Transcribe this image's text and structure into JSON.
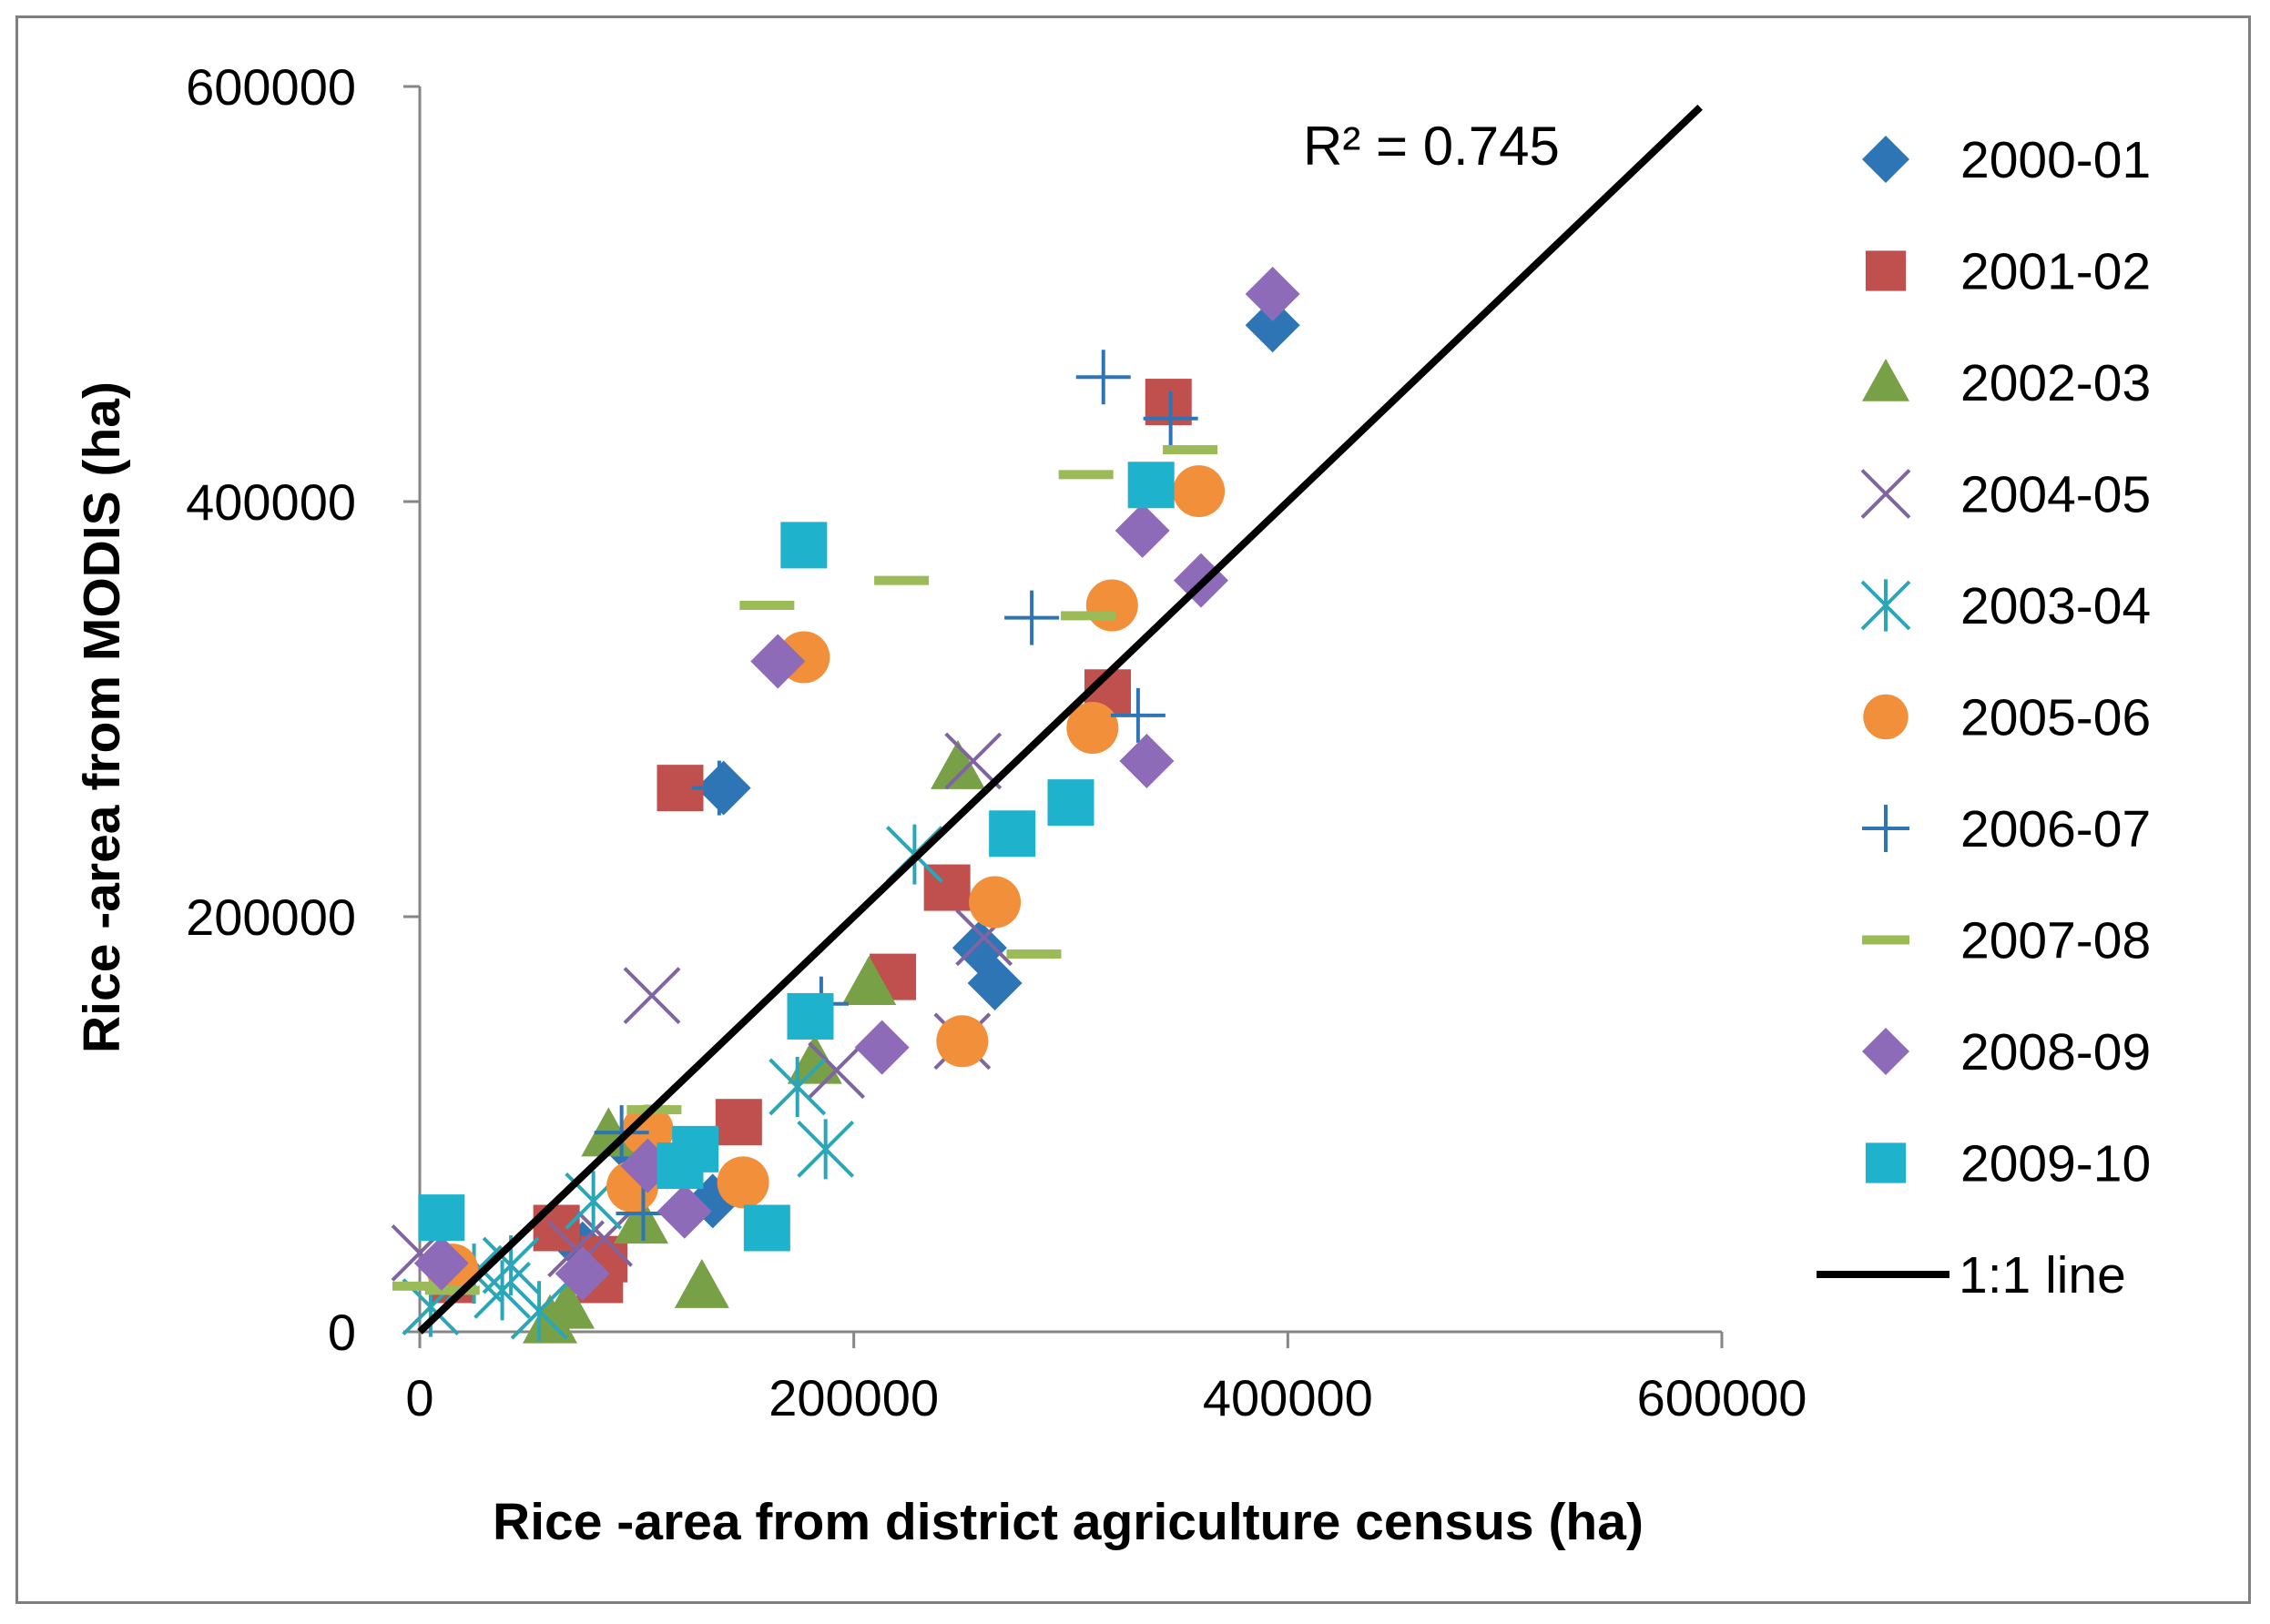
{
  "chart_data": {
    "type": "scatter",
    "title": "",
    "xlabel": "Rice -area from district agriculture census (ha)",
    "ylabel": "Rice -area from MODIS (ha)",
    "xlim": [
      0,
      600000
    ],
    "ylim": [
      0,
      600000
    ],
    "xticks": [
      0,
      200000,
      400000,
      600000
    ],
    "yticks": [
      0,
      200000,
      400000,
      600000
    ],
    "xtick_labels": [
      "0",
      "200000",
      "400000",
      "600000"
    ],
    "ytick_labels": [
      "0",
      "200000",
      "400000",
      "600000"
    ],
    "grid": false,
    "legend_position": "right",
    "annotation": "R² = 0.745",
    "colors": {
      "blue": "#2e75b6",
      "red": "#c0504d",
      "green": "#77a047",
      "purple": "#8064a2",
      "teal": "#2ba6b6",
      "orange": "#f18f3b",
      "lime": "#9bbb59",
      "violet": "#8e6bb8",
      "cyan": "#1fb2cc",
      "line": "#000000",
      "axis": "#868686"
    },
    "fit_line": {
      "name": "1:1 line",
      "x": [
        0,
        590000
      ],
      "y": [
        0,
        590000
      ],
      "color": "#000000"
    },
    "series": [
      {
        "name": "2000-01",
        "marker": "diamond",
        "color": "#2e75b6",
        "points": [
          [
            140000,
            262000
          ],
          [
            265000,
            168000
          ],
          [
            258000,
            185000
          ],
          [
            393000,
            485000
          ],
          [
            135000,
            63000
          ],
          [
            100000,
            85000
          ],
          [
            75000,
            40000
          ]
        ]
      },
      {
        "name": "2001-02",
        "marker": "square",
        "color": "#c0504d",
        "points": [
          [
            120000,
            262000
          ],
          [
            345000,
            448000
          ],
          [
            317000,
            308000
          ],
          [
            243000,
            214000
          ],
          [
            218000,
            171000
          ],
          [
            147000,
            101000
          ],
          [
            63000,
            50000
          ],
          [
            83000,
            25000
          ],
          [
            15000,
            25000
          ],
          [
            85000,
            35000
          ]
        ]
      },
      {
        "name": "2002-03",
        "marker": "triangle",
        "color": "#77a047",
        "points": [
          [
            248000,
            272000
          ],
          [
            207000,
            168000
          ],
          [
            182000,
            130000
          ],
          [
            87000,
            95000
          ],
          [
            130000,
            22000
          ],
          [
            102000,
            53000
          ],
          [
            68000,
            12000
          ],
          [
            60000,
            5000
          ]
        ]
      },
      {
        "name": "2004-05",
        "marker": "x",
        "color": "#8064a2",
        "points": [
          [
            107000,
            162000
          ],
          [
            255000,
            275000
          ],
          [
            260000,
            190000
          ],
          [
            192000,
            126000
          ],
          [
            250000,
            140000
          ],
          [
            0,
            38000
          ],
          [
            72000,
            40000
          ],
          [
            85000,
            45000
          ]
        ]
      },
      {
        "name": "2003-04",
        "marker": "star",
        "color": "#2ba6b6",
        "points": [
          [
            228000,
            230000
          ],
          [
            187000,
            88000
          ],
          [
            174000,
            118000
          ],
          [
            80000,
            63000
          ],
          [
            42000,
            32000
          ],
          [
            38000,
            20000
          ],
          [
            55000,
            10000
          ],
          [
            5000,
            12000
          ],
          [
            25000,
            28000
          ]
        ]
      },
      {
        "name": "2005-06",
        "marker": "circle",
        "color": "#f18f3b",
        "points": [
          [
            359000,
            405000
          ],
          [
            319000,
            350000
          ],
          [
            310000,
            291000
          ],
          [
            177000,
            325000
          ],
          [
            265000,
            207000
          ],
          [
            250000,
            140000
          ],
          [
            149000,
            72000
          ],
          [
            98000,
            70000
          ],
          [
            105000,
            97000
          ],
          [
            15000,
            30000
          ]
        ]
      },
      {
        "name": "2006-07",
        "marker": "plus",
        "color": "#2e75b6",
        "points": [
          [
            315000,
            460000
          ],
          [
            346000,
            440000
          ],
          [
            282000,
            344000
          ],
          [
            331000,
            297000
          ],
          [
            138000,
            262000
          ],
          [
            93000,
            96000
          ],
          [
            103000,
            57000
          ],
          [
            185000,
            158000
          ]
        ]
      },
      {
        "name": "2007-08",
        "marker": "dash",
        "color": "#9bbb59",
        "points": [
          [
            355000,
            425000
          ],
          [
            307000,
            413000
          ],
          [
            222000,
            362000
          ],
          [
            160000,
            350000
          ],
          [
            308000,
            345000
          ],
          [
            283000,
            182000
          ],
          [
            108000,
            107000
          ],
          [
            0,
            22000
          ],
          [
            15000,
            20000
          ]
        ]
      },
      {
        "name": "2008-09",
        "marker": "diamond",
        "color": "#8e6bb8",
        "points": [
          [
            393000,
            500000
          ],
          [
            333000,
            386000
          ],
          [
            360000,
            362000
          ],
          [
            335000,
            275000
          ],
          [
            165000,
            323000
          ],
          [
            213000,
            137000
          ],
          [
            122000,
            58000
          ],
          [
            105000,
            80000
          ],
          [
            10000,
            33000
          ],
          [
            75000,
            28000
          ]
        ]
      },
      {
        "name": "2009-10",
        "marker": "square",
        "color": "#1fb2cc",
        "points": [
          [
            177000,
            379000
          ],
          [
            337000,
            408000
          ],
          [
            300000,
            255000
          ],
          [
            273000,
            240000
          ],
          [
            180000,
            152000
          ],
          [
            160000,
            50000
          ],
          [
            127000,
            88000
          ],
          [
            120000,
            80000
          ],
          [
            10000,
            55000
          ]
        ]
      }
    ]
  }
}
